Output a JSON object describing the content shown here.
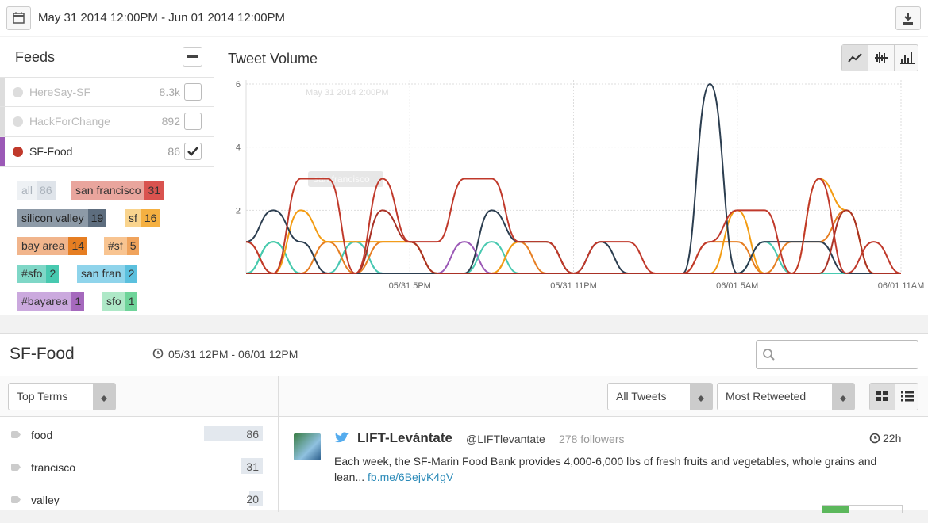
{
  "toolbar": {
    "date_range": "May 31 2014 12:00PM - Jun 01 2014 12:00PM"
  },
  "feeds": {
    "title": "Feeds",
    "items": [
      {
        "name": "HereSay-SF",
        "count": "8.3k"
      },
      {
        "name": "HackForChange",
        "count": 892
      },
      {
        "name": "SF-Food",
        "count": 86
      }
    ],
    "tags": [
      {
        "label": "all",
        "count": 86
      },
      {
        "label": "san francisco",
        "count": 31
      },
      {
        "label": "silicon valley",
        "count": 19
      },
      {
        "label": "sf",
        "count": 16
      },
      {
        "label": "bay area",
        "count": 14
      },
      {
        "label": "#sf",
        "count": 5
      },
      {
        "label": "#sfo",
        "count": 2
      },
      {
        "label": "san fran",
        "count": 2
      },
      {
        "label": "#bayarea",
        "count": 1
      },
      {
        "label": "sfo",
        "count": 1
      }
    ]
  },
  "chart_data": {
    "type": "line",
    "title": "Tweet Volume",
    "annotations": [
      "May 31 2014 2:00PM",
      "san francisco"
    ],
    "categories": [
      null,
      null,
      null,
      null,
      null,
      null,
      "05/31 5PM",
      null,
      null,
      null,
      null,
      null,
      "05/31 11PM",
      null,
      null,
      null,
      null,
      null,
      "06/01 5AM",
      null,
      null,
      null,
      null,
      null,
      "06/01 11AM"
    ],
    "ylim": [
      0,
      6
    ],
    "yticks": [
      2,
      4,
      6
    ],
    "grid": true,
    "series": [
      {
        "color": "#c0392b",
        "values": [
          1,
          0,
          3,
          3,
          0,
          3,
          1,
          1,
          3,
          3,
          1,
          1,
          0,
          1,
          1,
          0,
          0,
          1,
          2,
          2,
          0,
          3,
          0,
          1,
          0
        ]
      },
      {
        "color": "#a93226",
        "values": [
          0,
          0,
          0,
          0,
          0,
          2,
          1,
          0,
          0,
          0,
          0,
          0,
          0,
          0,
          0,
          0,
          0,
          0,
          0,
          0,
          0,
          0,
          2,
          0,
          0
        ]
      },
      {
        "color": "#2c3e50",
        "values": [
          1,
          2,
          1,
          0,
          0,
          0,
          0,
          0,
          0,
          2,
          1,
          1,
          0,
          1,
          0,
          0,
          0,
          6,
          0,
          1,
          1,
          1,
          0,
          0,
          0
        ]
      },
      {
        "color": "#f39c12",
        "values": [
          0,
          0,
          2,
          1,
          1,
          1,
          1,
          0,
          0,
          0,
          1,
          1,
          0,
          0,
          0,
          0,
          0,
          0,
          2,
          0,
          0,
          3,
          2,
          0,
          0
        ]
      },
      {
        "color": "#e67e22",
        "values": [
          1,
          0,
          0,
          1,
          0,
          1,
          1,
          0,
          0,
          0,
          1,
          0,
          0,
          0,
          0,
          0,
          0,
          1,
          1,
          0,
          1,
          1,
          2,
          0,
          0
        ]
      },
      {
        "color": "#48c9b0",
        "values": [
          0,
          1,
          0,
          0,
          1,
          0,
          0,
          0,
          0,
          1,
          0,
          0,
          0,
          0,
          0,
          0,
          0,
          0,
          0,
          1,
          0,
          0,
          0,
          0,
          0
        ]
      },
      {
        "color": "#5dade2",
        "values": [
          0,
          0,
          0,
          0,
          1,
          0,
          0,
          0,
          0,
          0,
          0,
          0,
          0,
          0,
          0,
          0,
          0,
          0,
          0,
          0,
          0,
          0,
          0,
          0,
          0
        ]
      },
      {
        "color": "#9b59b6",
        "values": [
          0,
          0,
          0,
          0,
          0,
          0,
          0,
          0,
          1,
          0,
          0,
          0,
          0,
          0,
          0,
          0,
          0,
          0,
          0,
          0,
          0,
          0,
          0,
          0,
          0
        ]
      },
      {
        "color": "#2ecc71",
        "values": [
          0,
          1,
          0,
          0,
          0,
          0,
          0,
          0,
          0,
          0,
          0,
          0,
          0,
          0,
          0,
          0,
          0,
          0,
          0,
          0,
          0,
          0,
          0,
          0,
          0
        ]
      }
    ]
  },
  "detail": {
    "title": "SF-Food",
    "time_range": "05/31 12PM - 06/01 12PM",
    "term_select": "Top Terms",
    "filter_select": "All Tweets",
    "sort_select": "Most Retweeted",
    "terms": [
      {
        "term": "food",
        "count": 86
      },
      {
        "term": "francisco",
        "count": 31
      },
      {
        "term": "valley",
        "count": 20
      }
    ],
    "tweet": {
      "name": "LIFT-Levántate",
      "handle": "@LIFTlevantate",
      "followers": "278 followers",
      "age": "22h",
      "text": "Each week, the SF-Marin Food Bank provides 4,000-6,000 lbs of fresh fruits and vegetables, whole grains and lean...",
      "link": "fb.me/6BejvK4gV"
    }
  }
}
